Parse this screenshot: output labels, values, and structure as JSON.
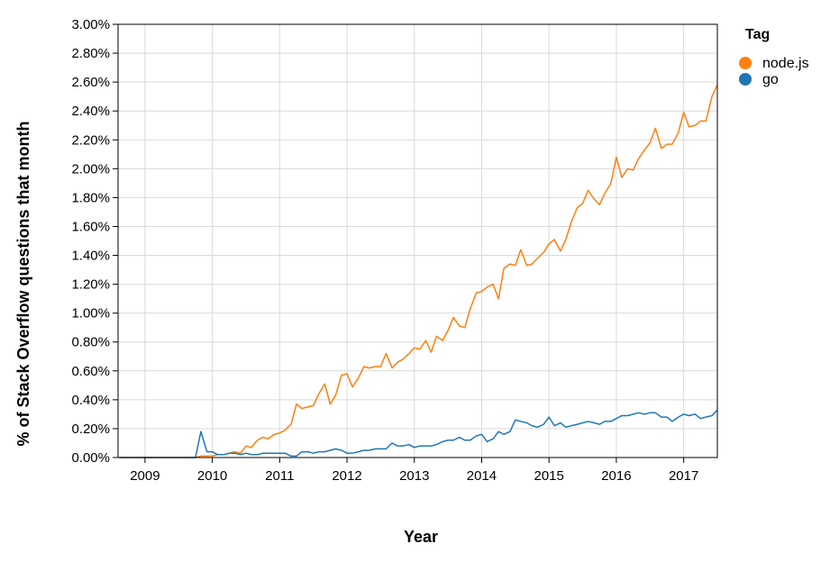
{
  "chart_data": {
    "type": "line",
    "xlabel": "Year",
    "ylabel": "% of Stack Overflow questions that month",
    "xlim": [
      2008.6,
      2017.5
    ],
    "ylim": [
      0,
      0.03
    ],
    "grid": true,
    "legend": {
      "title": "Tag",
      "position": "top-right"
    },
    "x_ticks": [
      {
        "value": 2009,
        "label": "2009"
      },
      {
        "value": 2010,
        "label": "2010"
      },
      {
        "value": 2011,
        "label": "2011"
      },
      {
        "value": 2012,
        "label": "2012"
      },
      {
        "value": 2013,
        "label": "2013"
      },
      {
        "value": 2014,
        "label": "2014"
      },
      {
        "value": 2015,
        "label": "2015"
      },
      {
        "value": 2016,
        "label": "2016"
      },
      {
        "value": 2017,
        "label": "2017"
      }
    ],
    "y_ticks": [
      {
        "value": 0.0,
        "label": "0.00%"
      },
      {
        "value": 0.002,
        "label": "0.20%"
      },
      {
        "value": 0.004,
        "label": "0.40%"
      },
      {
        "value": 0.006,
        "label": "0.60%"
      },
      {
        "value": 0.008,
        "label": "0.80%"
      },
      {
        "value": 0.01,
        "label": "1.00%"
      },
      {
        "value": 0.012,
        "label": "1.20%"
      },
      {
        "value": 0.014,
        "label": "1.40%"
      },
      {
        "value": 0.016,
        "label": "1.60%"
      },
      {
        "value": 0.018,
        "label": "1.80%"
      },
      {
        "value": 0.02,
        "label": "2.00%"
      },
      {
        "value": 0.022,
        "label": "2.20%"
      },
      {
        "value": 0.024,
        "label": "2.40%"
      },
      {
        "value": 0.026,
        "label": "2.60%"
      },
      {
        "value": 0.028,
        "label": "2.80%"
      },
      {
        "value": 0.03,
        "label": "3.00%"
      }
    ],
    "series": [
      {
        "name": "node.js",
        "color": "#ff7f0e",
        "points": [
          [
            2008.62,
            0
          ],
          [
            2008.83,
            0
          ],
          [
            2009.0,
            0
          ],
          [
            2009.25,
            0
          ],
          [
            2009.5,
            0
          ],
          [
            2009.75,
            0
          ],
          [
            2009.83,
            0.0001
          ],
          [
            2009.92,
            0.0001
          ],
          [
            2010.0,
            0.0001
          ],
          [
            2010.08,
            0.0002
          ],
          [
            2010.17,
            0.0002
          ],
          [
            2010.25,
            0.0003
          ],
          [
            2010.33,
            0.0004
          ],
          [
            2010.42,
            0.0003
          ],
          [
            2010.5,
            0.0008
          ],
          [
            2010.58,
            0.0007
          ],
          [
            2010.67,
            0.0012
          ],
          [
            2010.75,
            0.0014
          ],
          [
            2010.83,
            0.0013
          ],
          [
            2010.92,
            0.0016
          ],
          [
            2011.0,
            0.0017
          ],
          [
            2011.08,
            0.0019
          ],
          [
            2011.17,
            0.0023
          ],
          [
            2011.25,
            0.0037
          ],
          [
            2011.33,
            0.0034
          ],
          [
            2011.42,
            0.0035
          ],
          [
            2011.5,
            0.0036
          ],
          [
            2011.58,
            0.0044
          ],
          [
            2011.67,
            0.0051
          ],
          [
            2011.75,
            0.0037
          ],
          [
            2011.83,
            0.0043
          ],
          [
            2011.92,
            0.0057
          ],
          [
            2012.0,
            0.0058
          ],
          [
            2012.08,
            0.0049
          ],
          [
            2012.17,
            0.0055
          ],
          [
            2012.25,
            0.0063
          ],
          [
            2012.33,
            0.0062
          ],
          [
            2012.42,
            0.0063
          ],
          [
            2012.5,
            0.0063
          ],
          [
            2012.58,
            0.0072
          ],
          [
            2012.67,
            0.0062
          ],
          [
            2012.75,
            0.0066
          ],
          [
            2012.83,
            0.0068
          ],
          [
            2012.92,
            0.0072
          ],
          [
            2013.0,
            0.0076
          ],
          [
            2013.08,
            0.0075
          ],
          [
            2013.17,
            0.0081
          ],
          [
            2013.25,
            0.0073
          ],
          [
            2013.33,
            0.0084
          ],
          [
            2013.42,
            0.0081
          ],
          [
            2013.5,
            0.0088
          ],
          [
            2013.58,
            0.0097
          ],
          [
            2013.67,
            0.0091
          ],
          [
            2013.75,
            0.009
          ],
          [
            2013.83,
            0.0103
          ],
          [
            2013.92,
            0.0114
          ],
          [
            2014.0,
            0.0115
          ],
          [
            2014.08,
            0.0118
          ],
          [
            2014.17,
            0.012
          ],
          [
            2014.25,
            0.011
          ],
          [
            2014.33,
            0.0131
          ],
          [
            2014.42,
            0.0134
          ],
          [
            2014.5,
            0.0133
          ],
          [
            2014.58,
            0.0144
          ],
          [
            2014.67,
            0.0133
          ],
          [
            2014.75,
            0.0134
          ],
          [
            2014.83,
            0.0138
          ],
          [
            2014.92,
            0.0142
          ],
          [
            2015.0,
            0.0148
          ],
          [
            2015.08,
            0.0151
          ],
          [
            2015.17,
            0.0143
          ],
          [
            2015.25,
            0.0151
          ],
          [
            2015.33,
            0.0163
          ],
          [
            2015.42,
            0.0173
          ],
          [
            2015.5,
            0.0176
          ],
          [
            2015.58,
            0.0185
          ],
          [
            2015.67,
            0.0179
          ],
          [
            2015.75,
            0.0175
          ],
          [
            2015.83,
            0.0183
          ],
          [
            2015.92,
            0.019
          ],
          [
            2016.0,
            0.0208
          ],
          [
            2016.08,
            0.0194
          ],
          [
            2016.17,
            0.02
          ],
          [
            2016.25,
            0.0199
          ],
          [
            2016.33,
            0.0207
          ],
          [
            2016.42,
            0.0213
          ],
          [
            2016.5,
            0.0218
          ],
          [
            2016.58,
            0.0228
          ],
          [
            2016.67,
            0.0214
          ],
          [
            2016.75,
            0.0217
          ],
          [
            2016.83,
            0.0217
          ],
          [
            2016.92,
            0.0225
          ],
          [
            2017.0,
            0.0239
          ],
          [
            2017.08,
            0.0229
          ],
          [
            2017.17,
            0.023
          ],
          [
            2017.25,
            0.0233
          ],
          [
            2017.33,
            0.0233
          ],
          [
            2017.42,
            0.025
          ],
          [
            2017.5,
            0.0258
          ]
        ]
      },
      {
        "name": "go",
        "color": "#1f77b4",
        "points": [
          [
            2008.62,
            0
          ],
          [
            2008.83,
            0
          ],
          [
            2009.0,
            0
          ],
          [
            2009.25,
            0
          ],
          [
            2009.5,
            0
          ],
          [
            2009.75,
            0
          ],
          [
            2009.83,
            0.0018
          ],
          [
            2009.92,
            0.0004
          ],
          [
            2010.0,
            0.0004
          ],
          [
            2010.08,
            0.0002
          ],
          [
            2010.17,
            0.0002
          ],
          [
            2010.25,
            0.0003
          ],
          [
            2010.33,
            0.0003
          ],
          [
            2010.42,
            0.0002
          ],
          [
            2010.5,
            0.0003
          ],
          [
            2010.58,
            0.0002
          ],
          [
            2010.67,
            0.0002
          ],
          [
            2010.75,
            0.0003
          ],
          [
            2010.83,
            0.0003
          ],
          [
            2010.92,
            0.0003
          ],
          [
            2011.0,
            0.0003
          ],
          [
            2011.08,
            0.0003
          ],
          [
            2011.17,
            0.0001
          ],
          [
            2011.25,
            0.0001
          ],
          [
            2011.33,
            0.0004
          ],
          [
            2011.42,
            0.0004
          ],
          [
            2011.5,
            0.0003
          ],
          [
            2011.58,
            0.0004
          ],
          [
            2011.67,
            0.0004
          ],
          [
            2011.75,
            0.0005
          ],
          [
            2011.83,
            0.0006
          ],
          [
            2011.92,
            0.0005
          ],
          [
            2012.0,
            0.0003
          ],
          [
            2012.08,
            0.0003
          ],
          [
            2012.17,
            0.0004
          ],
          [
            2012.25,
            0.0005
          ],
          [
            2012.33,
            0.0005
          ],
          [
            2012.42,
            0.0006
          ],
          [
            2012.5,
            0.0006
          ],
          [
            2012.58,
            0.0006
          ],
          [
            2012.67,
            0.001
          ],
          [
            2012.75,
            0.0008
          ],
          [
            2012.83,
            0.0008
          ],
          [
            2012.92,
            0.0009
          ],
          [
            2013.0,
            0.0007
          ],
          [
            2013.08,
            0.0008
          ],
          [
            2013.17,
            0.0008
          ],
          [
            2013.25,
            0.0008
          ],
          [
            2013.33,
            0.0009
          ],
          [
            2013.42,
            0.0011
          ],
          [
            2013.5,
            0.0012
          ],
          [
            2013.58,
            0.0012
          ],
          [
            2013.67,
            0.0014
          ],
          [
            2013.75,
            0.0012
          ],
          [
            2013.83,
            0.0012
          ],
          [
            2013.92,
            0.0015
          ],
          [
            2014.0,
            0.0016
          ],
          [
            2014.08,
            0.0011
          ],
          [
            2014.17,
            0.0013
          ],
          [
            2014.25,
            0.0018
          ],
          [
            2014.33,
            0.0016
          ],
          [
            2014.42,
            0.0018
          ],
          [
            2014.5,
            0.0026
          ],
          [
            2014.58,
            0.0025
          ],
          [
            2014.67,
            0.0024
          ],
          [
            2014.75,
            0.0022
          ],
          [
            2014.83,
            0.0021
          ],
          [
            2014.92,
            0.0023
          ],
          [
            2015.0,
            0.0028
          ],
          [
            2015.08,
            0.0022
          ],
          [
            2015.17,
            0.0024
          ],
          [
            2015.25,
            0.0021
          ],
          [
            2015.33,
            0.0022
          ],
          [
            2015.42,
            0.0023
          ],
          [
            2015.5,
            0.0024
          ],
          [
            2015.58,
            0.0025
          ],
          [
            2015.67,
            0.0024
          ],
          [
            2015.75,
            0.0023
          ],
          [
            2015.83,
            0.0025
          ],
          [
            2015.92,
            0.0025
          ],
          [
            2016.0,
            0.0027
          ],
          [
            2016.08,
            0.0029
          ],
          [
            2016.17,
            0.0029
          ],
          [
            2016.25,
            0.003
          ],
          [
            2016.33,
            0.0031
          ],
          [
            2016.42,
            0.003
          ],
          [
            2016.5,
            0.0031
          ],
          [
            2016.58,
            0.0031
          ],
          [
            2016.67,
            0.0028
          ],
          [
            2016.75,
            0.0028
          ],
          [
            2016.83,
            0.0025
          ],
          [
            2016.92,
            0.0028
          ],
          [
            2017.0,
            0.003
          ],
          [
            2017.08,
            0.0029
          ],
          [
            2017.17,
            0.003
          ],
          [
            2017.25,
            0.0027
          ],
          [
            2017.33,
            0.0028
          ],
          [
            2017.42,
            0.0029
          ],
          [
            2017.5,
            0.0033
          ]
        ]
      }
    ]
  }
}
